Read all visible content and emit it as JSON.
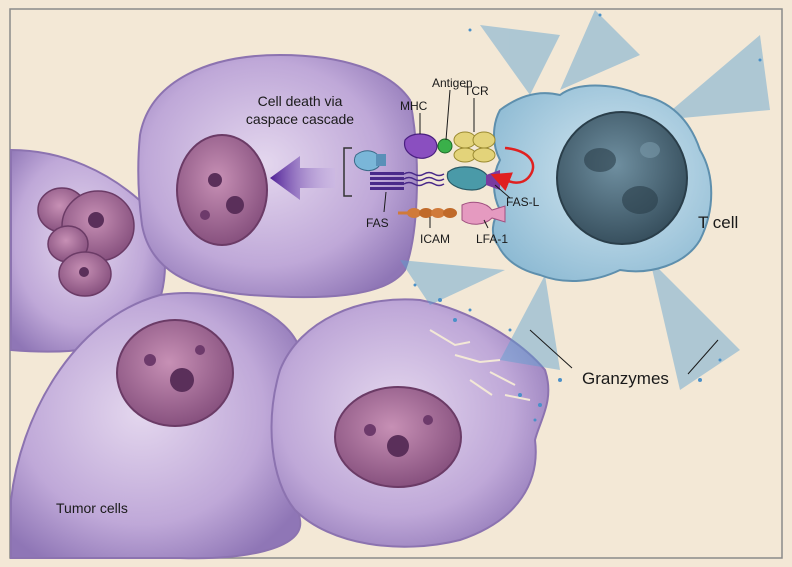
{
  "labels": {
    "cell_death_line1": "Cell death via",
    "cell_death_line2": "caspace cascade",
    "mhc": "MHC",
    "antigen": "Antigen",
    "tcr": "TCR",
    "fas": "FAS",
    "icam": "ICAM",
    "fas_l": "FAS-L",
    "lfa1": "LFA-1",
    "t_cell": "T cell",
    "granzymes": "Granzymes",
    "tumor_cells": "Tumor cells"
  },
  "colors": {
    "background": "#f3e8d6",
    "border": "#7a7a7a",
    "tumor_cell": "#b9a2d2",
    "tumor_cell_edge": "#8c73b0",
    "nucleus": "#9a5f8c",
    "nucleus_spot": "#5a2f5a",
    "t_cell": "#a9cde0",
    "t_cell_nucleus": "#3f5968",
    "arrow": "#5a2aa0",
    "mhc": "#8a4fc0",
    "tcr": "#e3d37a",
    "fas_l": "#4a9aa8",
    "lfa1": "#e59ac0",
    "icam": "#d07a3a",
    "red_arrow": "#e02020",
    "granzyme": "#5aa0d0"
  }
}
